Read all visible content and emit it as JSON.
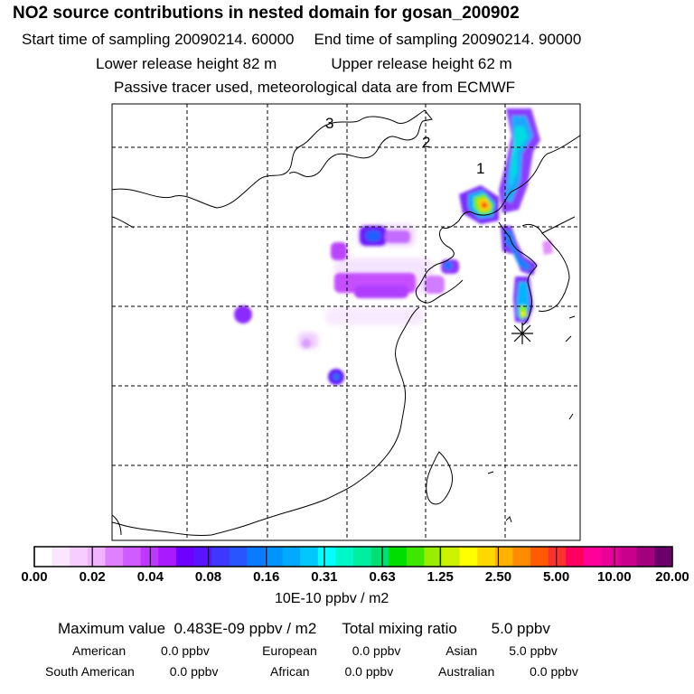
{
  "header": {
    "title": "NO2 source contributions in nested domain for gosan_200902",
    "start_label": "Start time of sampling 20090214. 60000",
    "end_label": "End time of sampling 20090214. 90000",
    "lower_label": "Lower release height   82 m",
    "upper_label": "Upper release height   62 m",
    "tracer_label": "Passive tracer used, meteorological data are from ECMWF"
  },
  "map": {
    "labels": [
      "3",
      "2",
      "1"
    ],
    "receptor_symbol": "asterisk-marker"
  },
  "colorbar": {
    "tick_labels": [
      "0.00",
      "0.02",
      "0.04",
      "0.08",
      "0.16",
      "0.31",
      "0.63",
      "1.25",
      "2.50",
      "5.00",
      "10.00",
      "20.00"
    ],
    "colors": [
      "#ffffff",
      "#fbe6ff",
      "#f7ccff",
      "#f1b3ff",
      "#e080ff",
      "#d05cff",
      "#bf38ff",
      "#a91aff",
      "#6e00ff",
      "#5a14ff",
      "#3f36ff",
      "#2855ff",
      "#0a7aff",
      "#0094ff",
      "#00aaff",
      "#00c8ff",
      "#00ffff",
      "#00f7c8",
      "#00eea0",
      "#00e070",
      "#00dd00",
      "#3fe600",
      "#99ee00",
      "#ccf200",
      "#ffff00",
      "#ffd800",
      "#ffb000",
      "#ff8c00",
      "#ff5a00",
      "#ff3030",
      "#ff0060",
      "#ff0099",
      "#e80099",
      "#c8008c",
      "#a3007e",
      "#6a006a"
    ],
    "unit": "10E-10 ppbv / m2"
  },
  "summary": {
    "line1": "Maximum value  0.483E-09 ppbv / m2      Total mixing ratio        5.0 ppbv",
    "line2": "American          0.0 ppbv               European          0.0 ppbv             Asian         5.0 ppbv",
    "line3": "South American          0.0 ppbv               African          0.0 ppbv             Australian          0.0 ppbv"
  }
}
